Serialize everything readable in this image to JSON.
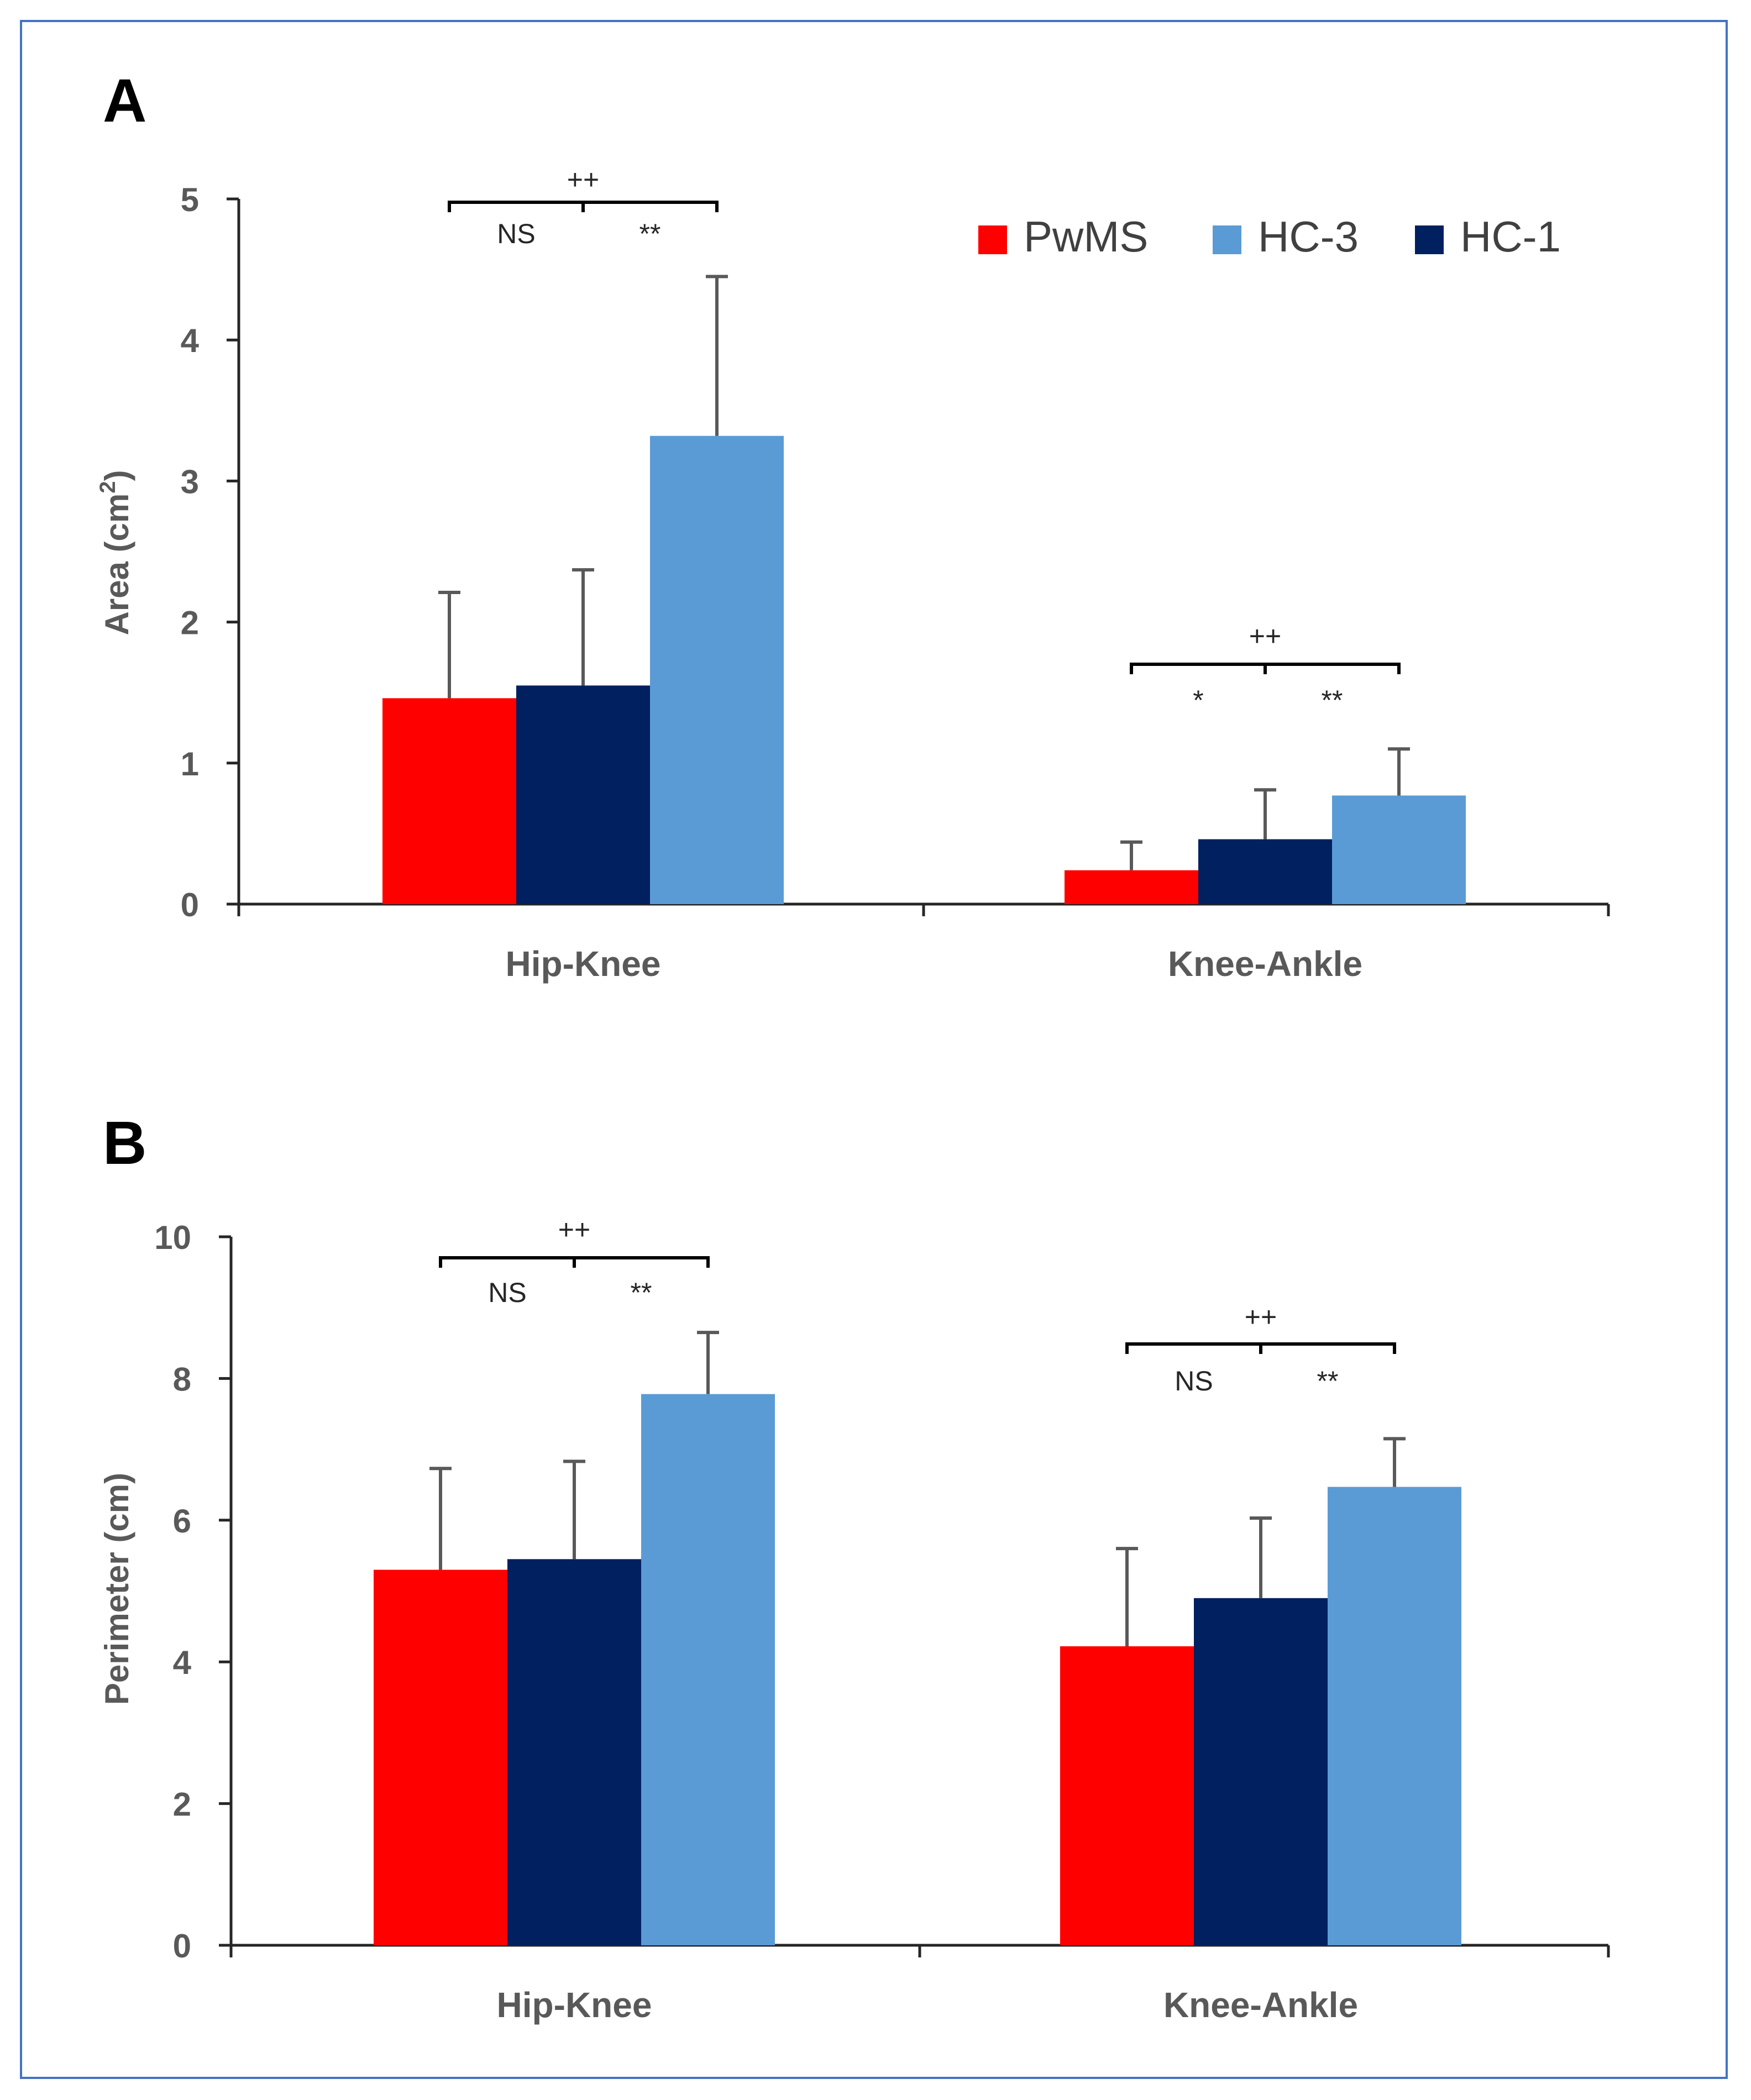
{
  "colors": {
    "PwMS": "#ff0000",
    "HC-1": "#002060",
    "HC-3": "#5b9bd5",
    "axis": "#262626",
    "error": "#595959",
    "frame": "#4472c4"
  },
  "legend": [
    {
      "name": "PwMS",
      "color_key": "PwMS"
    },
    {
      "name": "HC-3",
      "color_key": "HC-3"
    },
    {
      "name": "HC-1",
      "color_key": "HC-1"
    }
  ],
  "chart_data": [
    {
      "panel": "A",
      "type": "bar",
      "ylabel_main": "Area (cm",
      "ylabel_sup": "2",
      "ylabel_end": ")",
      "ylim": [
        0,
        5
      ],
      "yticks": [
        "0",
        "1",
        "2",
        "3",
        "4",
        "5"
      ],
      "categories": [
        "Hip-Knee",
        "Knee-Ankle"
      ],
      "series": [
        {
          "name": "PwMS",
          "values": [
            1.46,
            0.24
          ],
          "errors": [
            0.75,
            0.2
          ]
        },
        {
          "name": "HC-1",
          "values": [
            1.55,
            0.46
          ],
          "errors": [
            0.82,
            0.35
          ]
        },
        {
          "name": "HC-3",
          "values": [
            3.32,
            0.77
          ],
          "errors": [
            1.13,
            0.33
          ]
        }
      ],
      "annotations": [
        {
          "top": "++",
          "left": "NS",
          "right": "**"
        },
        {
          "top": "++",
          "left": "*",
          "right": "**"
        }
      ]
    },
    {
      "panel": "B",
      "type": "bar",
      "ylabel": "Perimeter (cm)",
      "ylim": [
        0,
        10
      ],
      "yticks": [
        "0",
        "2",
        "4",
        "6",
        "8",
        "10"
      ],
      "categories": [
        "Hip-Knee",
        "Knee-Ankle"
      ],
      "series": [
        {
          "name": "PwMS",
          "values": [
            5.3,
            4.22
          ],
          "errors": [
            1.43,
            1.38
          ]
        },
        {
          "name": "HC-1",
          "values": [
            5.45,
            4.9
          ],
          "errors": [
            1.38,
            1.13
          ]
        },
        {
          "name": "HC-3",
          "values": [
            7.78,
            6.47
          ],
          "errors": [
            0.87,
            0.68
          ]
        }
      ],
      "annotations": [
        {
          "top": "++",
          "left": "NS",
          "right": "**"
        },
        {
          "top": "++",
          "left": "NS",
          "right": "**"
        }
      ]
    }
  ]
}
